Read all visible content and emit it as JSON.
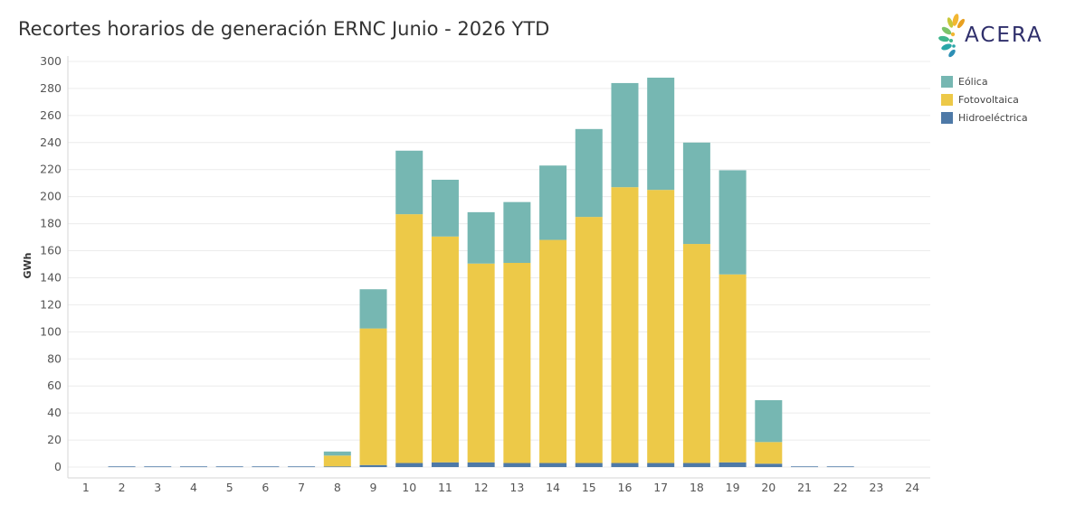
{
  "title": "Recortes horarios de generación ERNC Junio - 2026 YTD",
  "logo": {
    "text": "ACERA"
  },
  "chart_data": {
    "type": "bar",
    "stacked": true,
    "title": "Recortes horarios de generación ERNC Junio - 2026 YTD",
    "xlabel": "",
    "ylabel": "GWh",
    "ylim": [
      -6,
      304
    ],
    "yticks": [
      0,
      20,
      40,
      60,
      80,
      100,
      120,
      140,
      160,
      180,
      200,
      220,
      240,
      260,
      280,
      300
    ],
    "grid": true,
    "legend_position": "right",
    "categories": [
      "1",
      "2",
      "3",
      "4",
      "5",
      "6",
      "7",
      "8",
      "9",
      "10",
      "11",
      "12",
      "13",
      "14",
      "15",
      "16",
      "17",
      "18",
      "19",
      "20",
      "21",
      "22",
      "23",
      "24"
    ],
    "series": [
      {
        "name": "Hidroeléctrica",
        "color": "#4e79a7",
        "values": [
          0,
          0.5,
          0.5,
          0.5,
          0.5,
          0.5,
          0.5,
          0.5,
          1.5,
          3,
          3.5,
          3.5,
          3,
          3,
          3,
          3,
          3,
          3,
          3.5,
          2.5,
          0.5,
          0.5,
          0,
          0
        ]
      },
      {
        "name": "Fotovoltaica",
        "color": "#edc948",
        "values": [
          0,
          0,
          0,
          0,
          0,
          0,
          0,
          8,
          101,
          184,
          167,
          147,
          148,
          165,
          182,
          204,
          202,
          162,
          139,
          16,
          0,
          0,
          0,
          0
        ]
      },
      {
        "name": "Eólica",
        "color": "#76b7b2",
        "values": [
          0,
          0,
          0,
          0,
          0,
          0,
          0,
          3,
          29,
          47,
          42,
          38,
          45,
          55,
          65,
          77,
          83,
          75,
          77,
          31,
          0,
          0,
          0,
          0
        ]
      }
    ],
    "legend_order": [
      "Eólica",
      "Fotovoltaica",
      "Hidroeléctrica"
    ]
  }
}
